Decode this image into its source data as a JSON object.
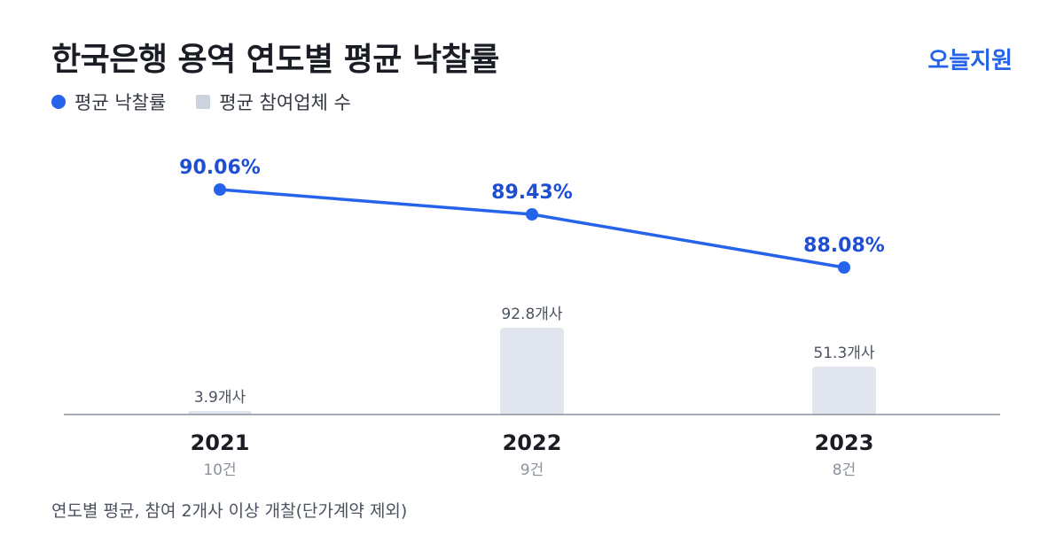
{
  "header": {
    "title": "한국은행 용역 연도별 평균 낙찰률",
    "brand": "오늘지원"
  },
  "legend": {
    "rate_label": "평균 낙찰률",
    "count_label": "평균 참여업체 수"
  },
  "footnote": "연도별 평균, 참여 2개사 이상 개찰(단가계약 제외)",
  "chart_data": {
    "type": "bar",
    "categories": [
      "2021",
      "2022",
      "2023"
    ],
    "category_sublabels": [
      "10건",
      "9건",
      "8건"
    ],
    "series": [
      {
        "name": "평균 낙찰률",
        "kind": "line",
        "values": [
          90.06,
          89.43,
          88.08
        ],
        "labels": [
          "90.06%",
          "89.43%",
          "88.08%"
        ],
        "color": "#2563eb"
      },
      {
        "name": "평균 참여업체 수",
        "kind": "bar",
        "values": [
          3.9,
          92.8,
          51.3
        ],
        "labels": [
          "3.9개사",
          "92.8개사",
          "51.3개사"
        ],
        "color": "#e1e6ee"
      }
    ],
    "grid": false,
    "legend_position": "top-left"
  }
}
